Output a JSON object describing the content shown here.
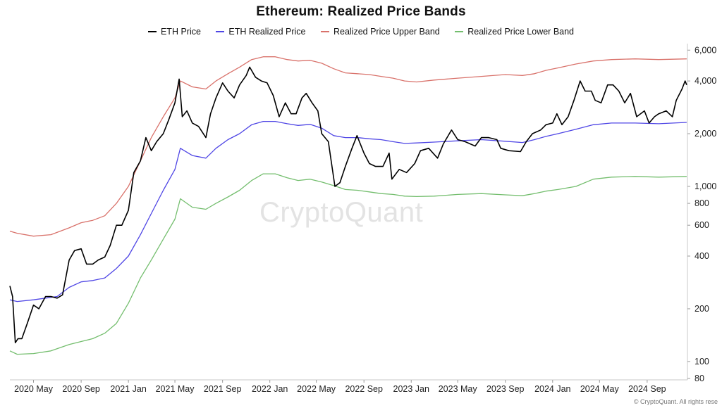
{
  "chart_data": {
    "type": "line",
    "title": "Ethereum: Realized Price Bands",
    "xlabel": "",
    "ylabel": "",
    "y_scale": "log",
    "ylim": [
      80,
      6000
    ],
    "xlim": [
      "2020-03",
      "2024-12"
    ],
    "grid": false,
    "legend_position": "top-center",
    "x_ticks": [
      "2020 May",
      "2020 Sep",
      "2021 Jan",
      "2021 May",
      "2021 Sep",
      "2022 Jan",
      "2022 May",
      "2022 Sep",
      "2023 Jan",
      "2023 May",
      "2023 Sep",
      "2024 Jan",
      "2024 May",
      "2024 Sep"
    ],
    "y_ticks": [
      {
        "value": 6000,
        "label": "6,000"
      },
      {
        "value": 4000,
        "label": "4,000"
      },
      {
        "value": 2000,
        "label": "2,000"
      },
      {
        "value": 1000,
        "label": "1,000"
      },
      {
        "value": 800,
        "label": "800"
      },
      {
        "value": 600,
        "label": "600"
      },
      {
        "value": 400,
        "label": "400"
      },
      {
        "value": 200,
        "label": "200"
      },
      {
        "value": 100,
        "label": "100"
      },
      {
        "value": 80,
        "label": "80"
      }
    ],
    "series": [
      {
        "name": "ETH Price",
        "color": "#000000",
        "points": [
          [
            "2020-03-01",
            270
          ],
          [
            "2020-03-08",
            235
          ],
          [
            "2020-03-15",
            128
          ],
          [
            "2020-03-22",
            135
          ],
          [
            "2020-04-01",
            135
          ],
          [
            "2020-04-15",
            165
          ],
          [
            "2020-05-01",
            210
          ],
          [
            "2020-05-15",
            200
          ],
          [
            "2020-06-01",
            235
          ],
          [
            "2020-06-15",
            235
          ],
          [
            "2020-07-01",
            230
          ],
          [
            "2020-07-15",
            240
          ],
          [
            "2020-08-01",
            380
          ],
          [
            "2020-08-15",
            430
          ],
          [
            "2020-09-01",
            440
          ],
          [
            "2020-09-15",
            360
          ],
          [
            "2020-10-01",
            360
          ],
          [
            "2020-10-15",
            380
          ],
          [
            "2020-11-01",
            395
          ],
          [
            "2020-11-15",
            460
          ],
          [
            "2020-12-01",
            600
          ],
          [
            "2020-12-15",
            600
          ],
          [
            "2021-01-01",
            730
          ],
          [
            "2021-01-15",
            1200
          ],
          [
            "2021-02-01",
            1400
          ],
          [
            "2021-02-15",
            1900
          ],
          [
            "2021-03-01",
            1600
          ],
          [
            "2021-03-15",
            1800
          ],
          [
            "2021-04-01",
            2000
          ],
          [
            "2021-04-15",
            2400
          ],
          [
            "2021-05-01",
            3000
          ],
          [
            "2021-05-12",
            4100
          ],
          [
            "2021-05-20",
            2500
          ],
          [
            "2021-06-01",
            2700
          ],
          [
            "2021-06-15",
            2300
          ],
          [
            "2021-07-01",
            2200
          ],
          [
            "2021-07-20",
            1900
          ],
          [
            "2021-08-01",
            2600
          ],
          [
            "2021-08-15",
            3200
          ],
          [
            "2021-09-01",
            3900
          ],
          [
            "2021-09-15",
            3500
          ],
          [
            "2021-10-01",
            3200
          ],
          [
            "2021-10-15",
            3800
          ],
          [
            "2021-11-01",
            4300
          ],
          [
            "2021-11-10",
            4800
          ],
          [
            "2021-11-25",
            4200
          ],
          [
            "2021-12-10",
            4000
          ],
          [
            "2021-12-25",
            3900
          ],
          [
            "2022-01-10",
            3300
          ],
          [
            "2022-01-25",
            2500
          ],
          [
            "2022-02-10",
            3000
          ],
          [
            "2022-02-25",
            2600
          ],
          [
            "2022-03-10",
            2600
          ],
          [
            "2022-03-25",
            3200
          ],
          [
            "2022-04-05",
            3400
          ],
          [
            "2022-04-20",
            3000
          ],
          [
            "2022-05-05",
            2700
          ],
          [
            "2022-05-15",
            2000
          ],
          [
            "2022-06-01",
            1800
          ],
          [
            "2022-06-18",
            1000
          ],
          [
            "2022-07-01",
            1050
          ],
          [
            "2022-07-15",
            1300
          ],
          [
            "2022-08-01",
            1650
          ],
          [
            "2022-08-14",
            1950
          ],
          [
            "2022-09-01",
            1550
          ],
          [
            "2022-09-15",
            1350
          ],
          [
            "2022-10-01",
            1300
          ],
          [
            "2022-10-20",
            1300
          ],
          [
            "2022-11-05",
            1550
          ],
          [
            "2022-11-12",
            1100
          ],
          [
            "2022-12-01",
            1250
          ],
          [
            "2022-12-20",
            1200
          ],
          [
            "2023-01-10",
            1350
          ],
          [
            "2023-01-25",
            1600
          ],
          [
            "2023-02-15",
            1650
          ],
          [
            "2023-03-10",
            1450
          ],
          [
            "2023-03-25",
            1750
          ],
          [
            "2023-04-15",
            2100
          ],
          [
            "2023-05-01",
            1850
          ],
          [
            "2023-05-20",
            1800
          ],
          [
            "2023-06-15",
            1700
          ],
          [
            "2023-07-01",
            1900
          ],
          [
            "2023-07-20",
            1900
          ],
          [
            "2023-08-10",
            1850
          ],
          [
            "2023-08-20",
            1650
          ],
          [
            "2023-09-10",
            1600
          ],
          [
            "2023-10-10",
            1580
          ],
          [
            "2023-10-25",
            1800
          ],
          [
            "2023-11-10",
            2000
          ],
          [
            "2023-12-01",
            2100
          ],
          [
            "2023-12-15",
            2250
          ],
          [
            "2024-01-01",
            2300
          ],
          [
            "2024-01-12",
            2600
          ],
          [
            "2024-01-25",
            2250
          ],
          [
            "2024-02-10",
            2500
          ],
          [
            "2024-02-25",
            3100
          ],
          [
            "2024-03-12",
            4000
          ],
          [
            "2024-03-25",
            3500
          ],
          [
            "2024-04-10",
            3500
          ],
          [
            "2024-04-20",
            3100
          ],
          [
            "2024-05-05",
            3000
          ],
          [
            "2024-05-22",
            3800
          ],
          [
            "2024-06-05",
            3800
          ],
          [
            "2024-06-20",
            3500
          ],
          [
            "2024-07-05",
            3000
          ],
          [
            "2024-07-20",
            3400
          ],
          [
            "2024-08-05",
            2500
          ],
          [
            "2024-08-25",
            2700
          ],
          [
            "2024-09-06",
            2300
          ],
          [
            "2024-09-20",
            2500
          ],
          [
            "2024-10-01",
            2600
          ],
          [
            "2024-10-20",
            2700
          ],
          [
            "2024-11-05",
            2500
          ],
          [
            "2024-11-15",
            3100
          ],
          [
            "2024-11-30",
            3600
          ],
          [
            "2024-12-08",
            4000
          ],
          [
            "2024-12-12",
            3800
          ]
        ]
      },
      {
        "name": "ETH Realized Price",
        "color": "#4f46e5",
        "points": [
          [
            "2020-03-01",
            225
          ],
          [
            "2020-03-20",
            220
          ],
          [
            "2020-05-01",
            225
          ],
          [
            "2020-06-01",
            230
          ],
          [
            "2020-07-01",
            235
          ],
          [
            "2020-08-01",
            265
          ],
          [
            "2020-09-01",
            285
          ],
          [
            "2020-10-01",
            290
          ],
          [
            "2020-11-01",
            300
          ],
          [
            "2020-12-01",
            340
          ],
          [
            "2021-01-01",
            400
          ],
          [
            "2021-02-01",
            530
          ],
          [
            "2021-03-01",
            700
          ],
          [
            "2021-04-01",
            950
          ],
          [
            "2021-05-01",
            1250
          ],
          [
            "2021-05-15",
            1650
          ],
          [
            "2021-06-15",
            1500
          ],
          [
            "2021-07-20",
            1450
          ],
          [
            "2021-08-15",
            1650
          ],
          [
            "2021-09-15",
            1850
          ],
          [
            "2021-10-15",
            2000
          ],
          [
            "2021-11-15",
            2250
          ],
          [
            "2021-12-15",
            2350
          ],
          [
            "2022-01-15",
            2350
          ],
          [
            "2022-02-15",
            2280
          ],
          [
            "2022-03-15",
            2230
          ],
          [
            "2022-04-15",
            2260
          ],
          [
            "2022-05-15",
            2150
          ],
          [
            "2022-06-15",
            1950
          ],
          [
            "2022-07-15",
            1900
          ],
          [
            "2022-08-15",
            1900
          ],
          [
            "2022-09-15",
            1870
          ],
          [
            "2022-10-15",
            1850
          ],
          [
            "2022-11-15",
            1800
          ],
          [
            "2022-12-15",
            1760
          ],
          [
            "2023-01-15",
            1770
          ],
          [
            "2023-03-01",
            1790
          ],
          [
            "2023-05-01",
            1820
          ],
          [
            "2023-07-01",
            1850
          ],
          [
            "2023-09-01",
            1810
          ],
          [
            "2023-10-15",
            1780
          ],
          [
            "2023-11-15",
            1850
          ],
          [
            "2023-12-15",
            1930
          ],
          [
            "2024-01-15",
            2000
          ],
          [
            "2024-03-01",
            2120
          ],
          [
            "2024-04-15",
            2250
          ],
          [
            "2024-06-01",
            2300
          ],
          [
            "2024-08-01",
            2300
          ],
          [
            "2024-10-01",
            2280
          ],
          [
            "2024-12-12",
            2320
          ]
        ]
      },
      {
        "name": "Realized Price Upper Band",
        "color": "#d9726b",
        "points": [
          [
            "2020-03-01",
            555
          ],
          [
            "2020-03-20",
            540
          ],
          [
            "2020-05-01",
            520
          ],
          [
            "2020-06-15",
            530
          ],
          [
            "2020-08-01",
            580
          ],
          [
            "2020-09-01",
            620
          ],
          [
            "2020-10-01",
            640
          ],
          [
            "2020-11-01",
            680
          ],
          [
            "2020-12-01",
            800
          ],
          [
            "2021-01-01",
            1000
          ],
          [
            "2021-02-01",
            1400
          ],
          [
            "2021-03-01",
            1900
          ],
          [
            "2021-04-01",
            2500
          ],
          [
            "2021-05-01",
            3200
          ],
          [
            "2021-05-15",
            4000
          ],
          [
            "2021-06-15",
            3700
          ],
          [
            "2021-07-20",
            3600
          ],
          [
            "2021-08-15",
            4000
          ],
          [
            "2021-09-15",
            4400
          ],
          [
            "2021-10-15",
            4800
          ],
          [
            "2021-11-15",
            5300
          ],
          [
            "2021-12-15",
            5500
          ],
          [
            "2022-01-15",
            5500
          ],
          [
            "2022-02-15",
            5300
          ],
          [
            "2022-03-15",
            5200
          ],
          [
            "2022-04-15",
            5250
          ],
          [
            "2022-05-15",
            5050
          ],
          [
            "2022-06-15",
            4700
          ],
          [
            "2022-07-15",
            4450
          ],
          [
            "2022-08-15",
            4400
          ],
          [
            "2022-09-15",
            4350
          ],
          [
            "2022-10-15",
            4250
          ],
          [
            "2022-11-15",
            4150
          ],
          [
            "2022-12-15",
            4000
          ],
          [
            "2023-01-15",
            3950
          ],
          [
            "2023-03-01",
            4050
          ],
          [
            "2023-05-01",
            4150
          ],
          [
            "2023-07-01",
            4250
          ],
          [
            "2023-09-01",
            4350
          ],
          [
            "2023-10-15",
            4300
          ],
          [
            "2023-11-15",
            4400
          ],
          [
            "2023-12-15",
            4600
          ],
          [
            "2024-01-15",
            4750
          ],
          [
            "2024-03-01",
            5000
          ],
          [
            "2024-04-15",
            5200
          ],
          [
            "2024-06-01",
            5300
          ],
          [
            "2024-08-01",
            5350
          ],
          [
            "2024-10-01",
            5300
          ],
          [
            "2024-12-12",
            5350
          ]
        ]
      },
      {
        "name": "Realized Price Lower Band",
        "color": "#74be6e",
        "points": [
          [
            "2020-03-01",
            115
          ],
          [
            "2020-03-20",
            110
          ],
          [
            "2020-05-01",
            111
          ],
          [
            "2020-06-15",
            115
          ],
          [
            "2020-08-01",
            125
          ],
          [
            "2020-09-01",
            130
          ],
          [
            "2020-10-01",
            135
          ],
          [
            "2020-11-01",
            145
          ],
          [
            "2020-12-01",
            165
          ],
          [
            "2021-01-01",
            215
          ],
          [
            "2021-02-01",
            300
          ],
          [
            "2021-03-01",
            380
          ],
          [
            "2021-04-01",
            500
          ],
          [
            "2021-05-01",
            650
          ],
          [
            "2021-05-15",
            850
          ],
          [
            "2021-06-15",
            760
          ],
          [
            "2021-07-20",
            740
          ],
          [
            "2021-08-15",
            800
          ],
          [
            "2021-09-15",
            870
          ],
          [
            "2021-10-15",
            950
          ],
          [
            "2021-11-15",
            1080
          ],
          [
            "2021-12-15",
            1180
          ],
          [
            "2022-01-15",
            1180
          ],
          [
            "2022-02-15",
            1120
          ],
          [
            "2022-03-15",
            1080
          ],
          [
            "2022-04-15",
            1100
          ],
          [
            "2022-05-15",
            1060
          ],
          [
            "2022-06-15",
            1010
          ],
          [
            "2022-07-15",
            960
          ],
          [
            "2022-08-15",
            950
          ],
          [
            "2022-09-15",
            930
          ],
          [
            "2022-10-15",
            910
          ],
          [
            "2022-11-15",
            900
          ],
          [
            "2022-12-15",
            880
          ],
          [
            "2023-01-15",
            875
          ],
          [
            "2023-03-01",
            880
          ],
          [
            "2023-05-01",
            900
          ],
          [
            "2023-07-01",
            910
          ],
          [
            "2023-09-01",
            895
          ],
          [
            "2023-10-15",
            885
          ],
          [
            "2023-11-15",
            910
          ],
          [
            "2023-12-15",
            940
          ],
          [
            "2024-01-15",
            960
          ],
          [
            "2024-03-01",
            1000
          ],
          [
            "2024-04-15",
            1100
          ],
          [
            "2024-06-01",
            1130
          ],
          [
            "2024-08-01",
            1140
          ],
          [
            "2024-10-01",
            1130
          ],
          [
            "2024-12-12",
            1140
          ]
        ]
      }
    ]
  },
  "watermark": "CryptoQuant",
  "copyright": "© CryptoQuant. All rights rese"
}
